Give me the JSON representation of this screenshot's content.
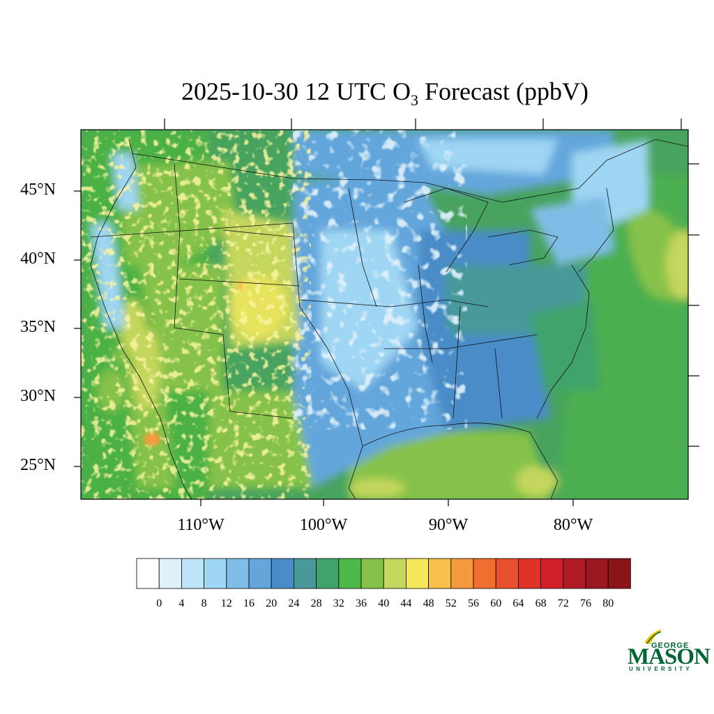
{
  "title": {
    "prefix": "2025-10-30 12 UTC O",
    "subscript": "3",
    "suffix": " Forecast (ppbV)"
  },
  "map": {
    "variable": "O3 surface concentration",
    "units": "ppbV",
    "region": "Contiguous United States",
    "lat_labels": [
      "45°N",
      "40°N",
      "35°N",
      "30°N",
      "25°N"
    ],
    "lon_labels": [
      "110°W",
      "100°W",
      "90°W",
      "80°W"
    ]
  },
  "colorbar": {
    "labels": [
      "0",
      "4",
      "8",
      "12",
      "16",
      "20",
      "24",
      "28",
      "32",
      "36",
      "40",
      "44",
      "48",
      "52",
      "56",
      "60",
      "64",
      "68",
      "72",
      "76",
      "80"
    ],
    "colors": [
      "#ffffff",
      "#dff1fb",
      "#bfe5f8",
      "#9fd6f3",
      "#80bde6",
      "#64a6dc",
      "#4a8cc8",
      "#47999a",
      "#3fa36b",
      "#4cb848",
      "#86c24a",
      "#c4d65c",
      "#f4e85a",
      "#f6c04a",
      "#f59a3c",
      "#f06e30",
      "#e84f2c",
      "#e03328",
      "#d01e2a",
      "#b01a25",
      "#9c1820",
      "#8a1418"
    ]
  },
  "logo": {
    "line1": "GEORGE",
    "line2": "MASON",
    "line3": "UNIVERSITY",
    "color": "#006633",
    "accent": "#f2c200"
  }
}
